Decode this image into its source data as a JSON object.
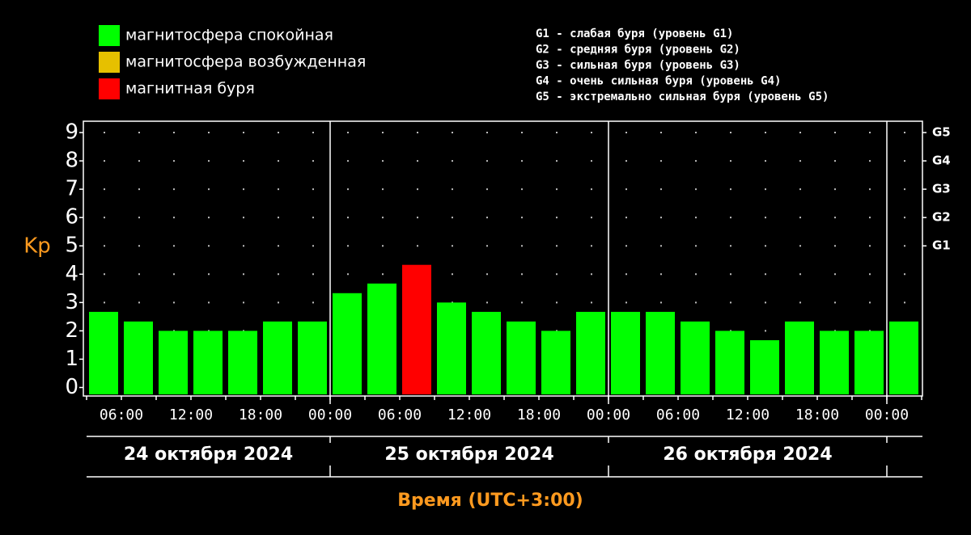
{
  "chart_data": {
    "type": "bar",
    "ylabel": "Kp",
    "xlabel": "Время (UTC+3:00)",
    "legend": [
      {
        "label": "магнитосфера спокойная",
        "color": "#00ff00"
      },
      {
        "label": "магнитосфера возбужденная",
        "color": "#e6c000"
      },
      {
        "label": "магнитная буря",
        "color": "#ff0000"
      }
    ],
    "storm_levels": [
      "G1 - слабая буря (уровень G1)",
      "G2 - средняя буря (уровень G2)",
      "G3 - сильная буря (уровень G3)",
      "G4 - очень сильная буря (уровень G4)",
      "G5 - экстремально сильная буря (уровень G5)"
    ],
    "values": [
      2.67,
      2.33,
      2,
      2,
      2,
      2.33,
      2.33,
      3.33,
      3.67,
      4.33,
      3,
      2.67,
      2.33,
      2,
      2.67,
      2.67,
      2.67,
      2.33,
      2,
      1.67,
      2.33,
      2,
      2,
      2.33
    ],
    "colors": [
      "#00ff00",
      "#00ff00",
      "#00ff00",
      "#00ff00",
      "#00ff00",
      "#00ff00",
      "#00ff00",
      "#00ff00",
      "#00ff00",
      "#ff0000",
      "#00ff00",
      "#00ff00",
      "#00ff00",
      "#00ff00",
      "#00ff00",
      "#00ff00",
      "#00ff00",
      "#00ff00",
      "#00ff00",
      "#00ff00",
      "#00ff00",
      "#00ff00",
      "#00ff00",
      "#00ff00"
    ],
    "xticks": [
      "06:00",
      "12:00",
      "18:00",
      "00:00",
      "06:00",
      "12:00",
      "18:00",
      "00:00",
      "06:00",
      "12:00",
      "18:00",
      "00:00"
    ],
    "days": [
      "24 октября 2024",
      "25 октября 2024",
      "26 октября 2024"
    ],
    "ylim": [
      -0.3,
      9.4
    ],
    "yticks": [
      0,
      1,
      2,
      3,
      4,
      5,
      6,
      7,
      8,
      9
    ],
    "y2ticks": [
      {
        "value": 5,
        "label": "G1"
      },
      {
        "value": 6,
        "label": "G2"
      },
      {
        "value": 7,
        "label": "G3"
      },
      {
        "value": 8,
        "label": "G4"
      },
      {
        "value": 9,
        "label": "G5"
      }
    ],
    "grid": true
  }
}
